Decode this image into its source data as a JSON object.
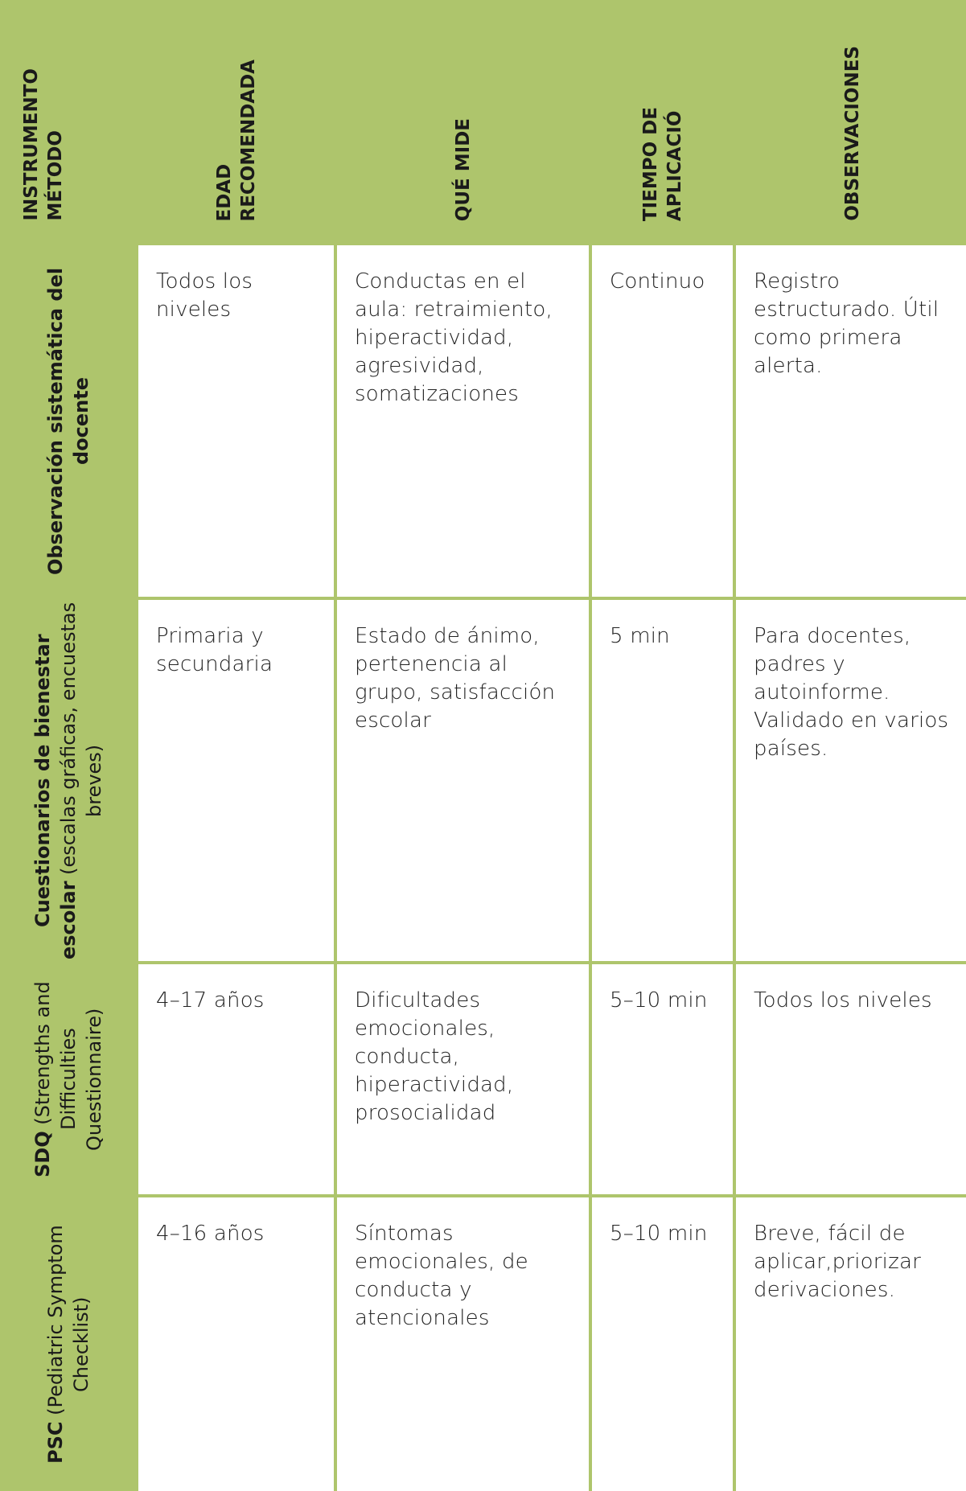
{
  "headers": [
    "INSTRUMENTO\nMÉTODO",
    "EDAD\nRECOMENDADA",
    "QUÉ MIDE",
    "TIEMPO DE\nAPLICACIÓ",
    "OBSERVACIONES"
  ],
  "rows": [
    {
      "instrument_bold": "Observación sistemática del docente",
      "instrument_rest": "",
      "age": "Todos los niveles",
      "measures": "Conductas en el aula: retraimiento, hiperactividad, agresividad, somatizaciones",
      "time": "Continuo",
      "notes": "Registro estructurado. Útil como primera alerta."
    },
    {
      "instrument_bold": "Cuestionarios de bienestar escolar",
      "instrument_rest": " (escalas gráficas, encuestas breves)",
      "age": "Primaria y secundaria",
      "measures": "Estado de ánimo, pertenencia al grupo, satisfacción escolar",
      "time": "5 min",
      "notes": "Para docentes, padres y autoinforme. Validado en varios países."
    },
    {
      "instrument_bold": "SDQ",
      "instrument_rest": " (Strengths and Difficulties Questionnaire)",
      "age": "4–17 años",
      "measures": "Dificultades emocionales, conducta, hiperactividad, prosocialidad",
      "time": "5–10 min",
      "notes": "Todos los niveles"
    },
    {
      "instrument_bold": "PSC",
      "instrument_rest": " (Pediatric Symptom Checklist)",
      "age": "4–16 años",
      "measures": "Síntomas emocionales, de conducta y atencionales",
      "time": "5–10 min",
      "notes": "Breve, fácil de aplicar,priorizar derivaciones."
    }
  ],
  "colors": {
    "accent": "#aec56c",
    "cell": "#ffffff",
    "text": "#222222"
  }
}
